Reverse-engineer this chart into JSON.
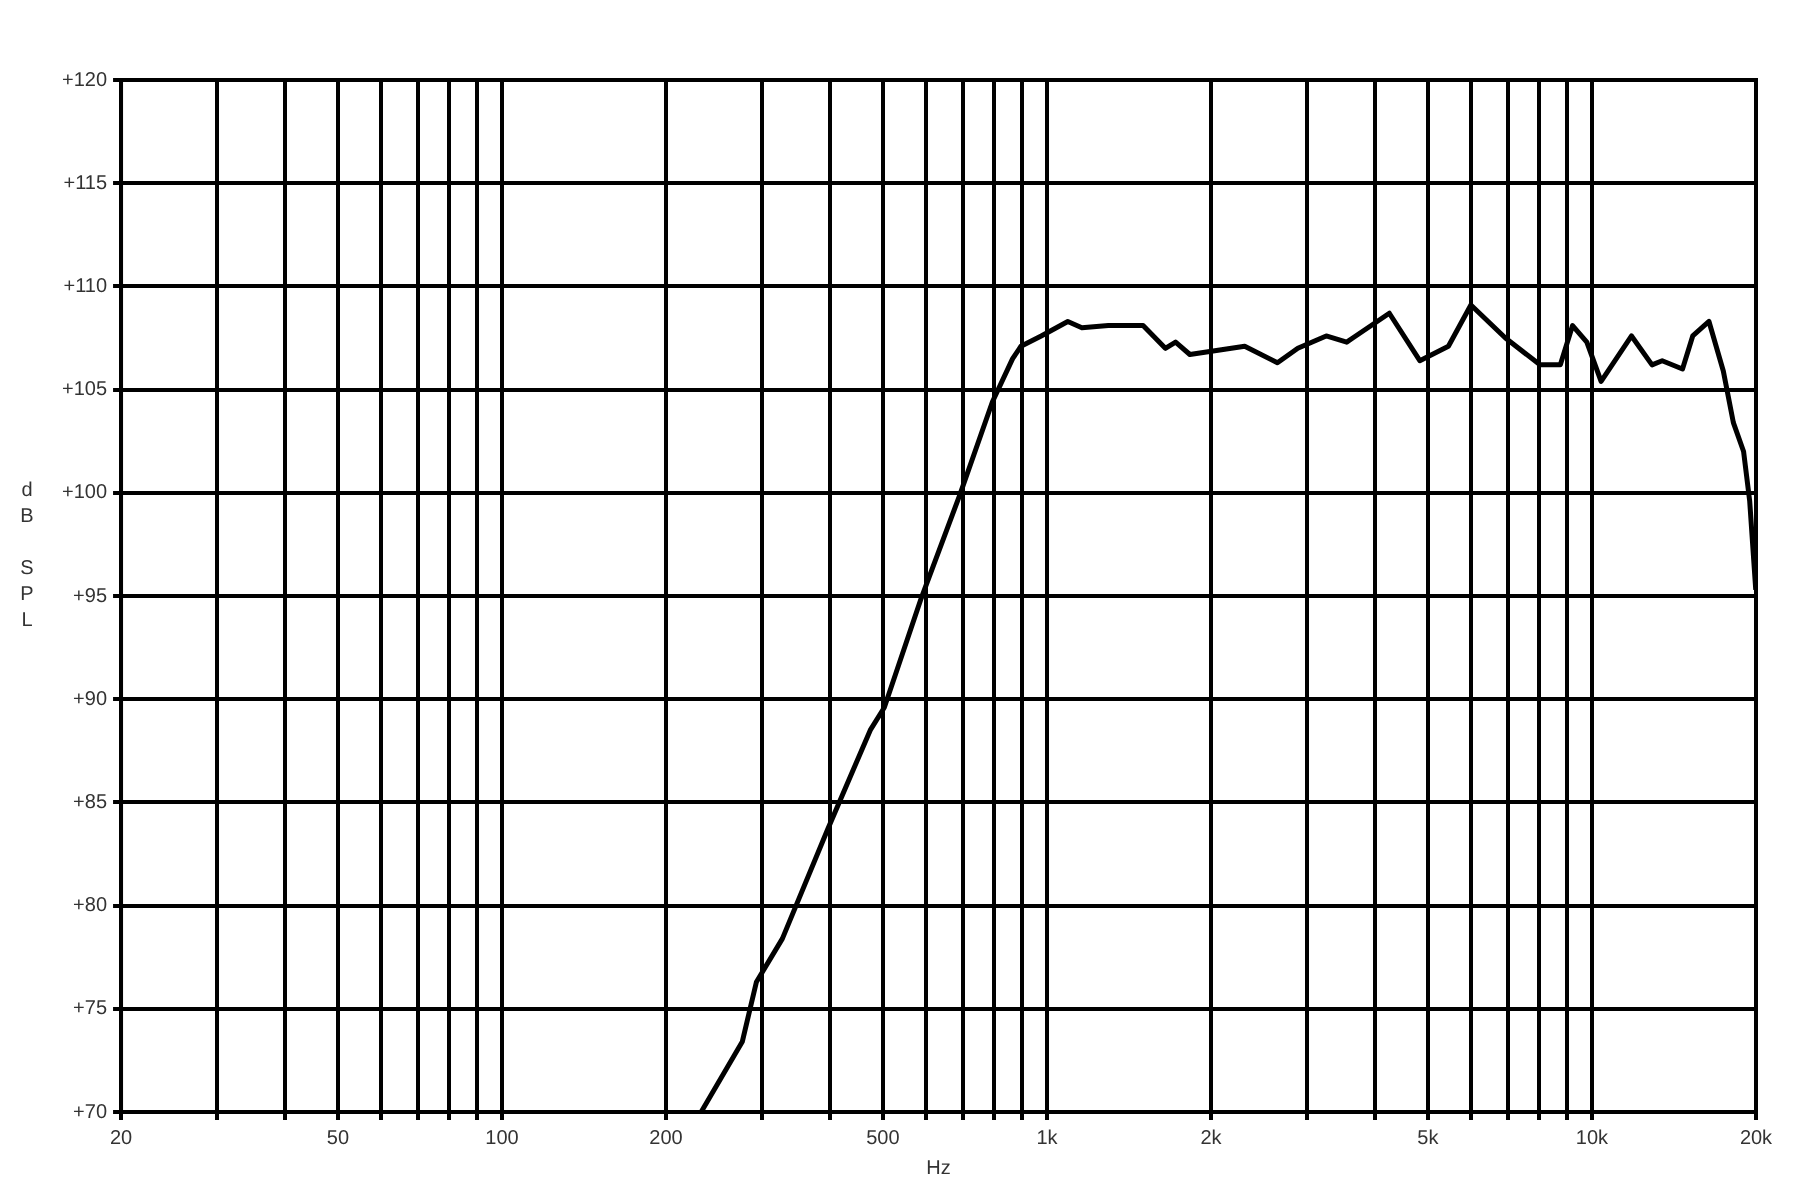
{
  "chart_data": {
    "type": "line",
    "xlabel": "Hz",
    "ylabel": "dB SPL",
    "log": "x",
    "xlim": [
      20,
      20000
    ],
    "ylim": [
      70,
      120
    ],
    "xticks": [
      20,
      {
        "value": 30,
        "label": null
      },
      {
        "value": 40,
        "label": null
      },
      50,
      {
        "value": 60,
        "label": null
      },
      {
        "value": 70,
        "label": null
      },
      {
        "value": 80,
        "label": null
      },
      {
        "value": 90,
        "label": null
      },
      100,
      200,
      {
        "value": 300,
        "label": null
      },
      {
        "value": 400,
        "label": null
      },
      500,
      {
        "value": 600,
        "label": null
      },
      {
        "value": 700,
        "label": null
      },
      {
        "value": 800,
        "label": null
      },
      {
        "value": 900,
        "label": null
      },
      {
        "value": 1000,
        "label": "1k"
      },
      {
        "value": 2000,
        "label": "2k"
      },
      {
        "value": 3000,
        "label": null
      },
      {
        "value": 4000,
        "label": null
      },
      {
        "value": 5000,
        "label": "5k"
      },
      {
        "value": 6000,
        "label": null
      },
      {
        "value": 7000,
        "label": null
      },
      {
        "value": 8000,
        "label": null
      },
      {
        "value": 9000,
        "label": null
      },
      {
        "value": 10000,
        "label": "10k"
      },
      {
        "value": 20000,
        "label": "20k"
      }
    ],
    "yticks": [
      {
        "value": 70,
        "label": "+70"
      },
      {
        "value": 75,
        "label": "+75"
      },
      {
        "value": 80,
        "label": "+80"
      },
      {
        "value": 85,
        "label": "+85"
      },
      {
        "value": 90,
        "label": "+90"
      },
      {
        "value": 95,
        "label": "+95"
      },
      {
        "value": 100,
        "label": "+100"
      },
      {
        "value": 105,
        "label": "+105"
      },
      {
        "value": 110,
        "label": "+110"
      },
      {
        "value": 115,
        "label": "+115"
      },
      {
        "value": 120,
        "label": "+120"
      }
    ],
    "grid": true,
    "legend": false,
    "marker": "none",
    "line_style": "solid",
    "series": [
      {
        "color": "#000000",
        "x": [
          232,
          276,
          293,
          327,
          396,
          474,
          503,
          588,
          692,
          794,
          865,
          896,
          976,
          1092,
          1159,
          1296,
          1330,
          1501,
          1649,
          1722,
          1829,
          2306,
          2648,
          2886,
          3254,
          3548,
          3640,
          4248,
          4832,
          5453,
          5996,
          6938,
          8030,
          8750,
          9214,
          9786,
          10394,
          11820,
          12890,
          13456,
          14662,
          15308,
          16396,
          17420,
          18176,
          18978,
          19474,
          19980
        ],
        "values": [
          70,
          73.4,
          76.3,
          78.4,
          83.7,
          88.5,
          89.6,
          94.9,
          99.9,
          104.4,
          106.5,
          107.1,
          107.6,
          108.3,
          108.0,
          108.1,
          108.1,
          108.1,
          107.0,
          107.3,
          106.7,
          107.1,
          106.3,
          107.0,
          107.6,
          107.3,
          107.5,
          108.7,
          106.4,
          107.1,
          109.1,
          107.5,
          106.2,
          106.2,
          108.1,
          107.3,
          105.4,
          107.6,
          106.2,
          106.4,
          106.0,
          107.6,
          108.3,
          105.9,
          103.4,
          102.0,
          99.6,
          95.3
        ]
      }
    ]
  }
}
